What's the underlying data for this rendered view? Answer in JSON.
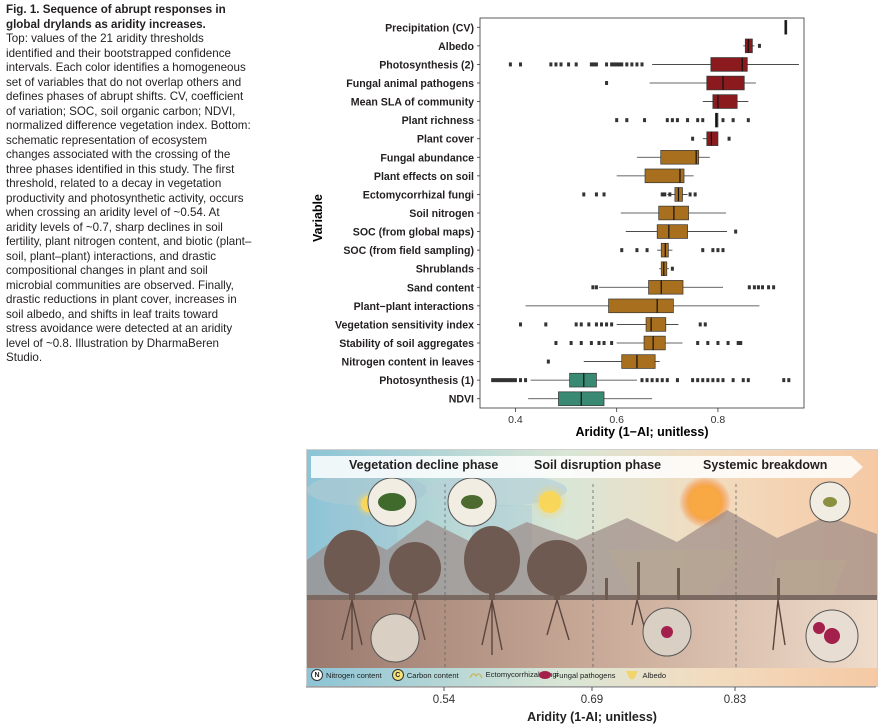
{
  "caption": {
    "title": "Fig. 1. Sequence of abrupt responses in global drylands as aridity increases.",
    "body": "Top: values of the 21 aridity thresholds identified and their bootstrapped confidence intervals. Each color identifies a homogeneous set of variables that do not overlap others and defines phases of abrupt shifts. CV, coefficient of variation; SOC, soil organic carbon; NDVI, normalized difference vegetation index. Bottom: schematic representation of ecosystem changes associated with the crossing of the three phases identified in this study. The first threshold, related to a decay in vegetation productivity and photosynthetic activity, occurs when crossing an aridity level of ~0.54. At aridity levels of ~0.7, sharp declines in soil fertility, plant nitrogen content, and biotic (plant–soil, plant–plant) interactions, and drastic compositional changes in plant and soil microbial communities are observed. Finally, drastic reductions in plant cover, increases in soil albedo, and shifts in leaf traits toward stress avoidance were detected at an aridity level of ~0.8. Illustration by DharmaBeren Studio."
  },
  "colors": {
    "red": "#8b1a1f",
    "brown": "#a8701e",
    "green": "#3a8a73"
  },
  "chart_data": {
    "type": "boxplot",
    "xlabel": "Aridity (1−AI; unitless)",
    "ylabel": "Variable",
    "xlim": [
      0.33,
      0.97
    ],
    "xticks": [
      0.4,
      0.6,
      0.8
    ],
    "xtick_labels": [
      "0.4",
      "0.6",
      "0.8"
    ],
    "series": [
      {
        "label": "Precipitation (CV)",
        "group": "none",
        "q1": 0.932,
        "median": 0.934,
        "q3": 0.936,
        "lo": 0.932,
        "hi": 0.936,
        "outliers": []
      },
      {
        "label": "Albedo",
        "group": "red",
        "q1": 0.854,
        "median": 0.86,
        "q3": 0.868,
        "lo": 0.85,
        "hi": 0.872,
        "outliers": [
          0.882
        ]
      },
      {
        "label": "Photosynthesis (2)",
        "group": "red",
        "q1": 0.786,
        "median": 0.848,
        "q3": 0.858,
        "lo": 0.67,
        "hi": 0.96,
        "outliers": [
          0.39,
          0.41,
          0.47,
          0.48,
          0.49,
          0.505,
          0.52,
          0.55,
          0.555,
          0.56,
          0.58,
          0.59,
          0.595,
          0.6,
          0.605,
          0.61,
          0.62,
          0.63,
          0.64,
          0.65
        ]
      },
      {
        "label": "Fungal animal pathogens",
        "group": "red",
        "q1": 0.778,
        "median": 0.81,
        "q3": 0.852,
        "lo": 0.665,
        "hi": 0.875,
        "outliers": [
          0.58
        ]
      },
      {
        "label": "Mean SLA of community",
        "group": "red",
        "q1": 0.79,
        "median": 0.8,
        "q3": 0.838,
        "lo": 0.77,
        "hi": 0.86,
        "outliers": []
      },
      {
        "label": "Plant richness",
        "group": "red",
        "q1": 0.795,
        "median": 0.797,
        "q3": 0.8,
        "lo": 0.795,
        "hi": 0.8,
        "outliers": [
          0.6,
          0.62,
          0.655,
          0.7,
          0.71,
          0.72,
          0.74,
          0.76,
          0.77,
          0.81,
          0.83,
          0.86
        ]
      },
      {
        "label": "Plant cover",
        "group": "red",
        "q1": 0.778,
        "median": 0.787,
        "q3": 0.8,
        "lo": 0.77,
        "hi": 0.8,
        "outliers": [
          0.75,
          0.822
        ]
      },
      {
        "label": "Fungal abundance",
        "group": "brown",
        "q1": 0.687,
        "median": 0.757,
        "q3": 0.762,
        "lo": 0.64,
        "hi": 0.784,
        "outliers": []
      },
      {
        "label": "Plant effects on soil",
        "group": "brown",
        "q1": 0.656,
        "median": 0.725,
        "q3": 0.733,
        "lo": 0.6,
        "hi": 0.752,
        "outliers": []
      },
      {
        "label": "Ectomycorrhizal fungi",
        "group": "brown",
        "q1": 0.715,
        "median": 0.722,
        "q3": 0.73,
        "lo": 0.7,
        "hi": 0.74,
        "outliers": [
          0.535,
          0.56,
          0.575,
          0.69,
          0.695,
          0.705,
          0.745,
          0.755
        ]
      },
      {
        "label": "Soil nitrogen",
        "group": "brown",
        "q1": 0.683,
        "median": 0.713,
        "q3": 0.742,
        "lo": 0.608,
        "hi": 0.816,
        "outliers": []
      },
      {
        "label": "SOC (from global maps)",
        "group": "brown",
        "q1": 0.68,
        "median": 0.703,
        "q3": 0.74,
        "lo": 0.618,
        "hi": 0.818,
        "outliers": [
          0.835
        ]
      },
      {
        "label": "SOC (from field sampling)",
        "group": "brown",
        "q1": 0.688,
        "median": 0.696,
        "q3": 0.702,
        "lo": 0.68,
        "hi": 0.71,
        "outliers": [
          0.61,
          0.64,
          0.66,
          0.77,
          0.79,
          0.8,
          0.81
        ]
      },
      {
        "label": "Shrublands",
        "group": "brown",
        "q1": 0.688,
        "median": 0.693,
        "q3": 0.699,
        "lo": 0.684,
        "hi": 0.703,
        "outliers": [
          0.71
        ]
      },
      {
        "label": "Sand content",
        "group": "brown",
        "q1": 0.663,
        "median": 0.688,
        "q3": 0.731,
        "lo": 0.565,
        "hi": 0.81,
        "outliers": [
          0.553,
          0.56,
          0.862,
          0.872,
          0.88,
          0.888,
          0.9,
          0.91
        ]
      },
      {
        "label": "Plant−plant interactions",
        "group": "brown",
        "q1": 0.584,
        "median": 0.68,
        "q3": 0.712,
        "lo": 0.42,
        "hi": 0.882,
        "outliers": []
      },
      {
        "label": "Vegetation sensitivity index",
        "group": "brown",
        "q1": 0.658,
        "median": 0.668,
        "q3": 0.697,
        "lo": 0.6,
        "hi": 0.722,
        "outliers": [
          0.41,
          0.46,
          0.52,
          0.53,
          0.545,
          0.56,
          0.57,
          0.58,
          0.59,
          0.765,
          0.775
        ]
      },
      {
        "label": "Stability of soil aggregates",
        "group": "brown",
        "q1": 0.654,
        "median": 0.672,
        "q3": 0.696,
        "lo": 0.6,
        "hi": 0.73,
        "outliers": [
          0.48,
          0.51,
          0.53,
          0.55,
          0.565,
          0.575,
          0.59,
          0.76,
          0.78,
          0.8,
          0.82,
          0.84,
          0.845
        ]
      },
      {
        "label": "Nitrogen content in leaves",
        "group": "brown",
        "q1": 0.61,
        "median": 0.64,
        "q3": 0.676,
        "lo": 0.535,
        "hi": 0.685,
        "outliers": [
          0.465
        ]
      },
      {
        "label": "Photosynthesis (1)",
        "group": "green",
        "q1": 0.507,
        "median": 0.535,
        "q3": 0.56,
        "lo": 0.43,
        "hi": 0.64,
        "outliers": [
          0.355,
          0.36,
          0.365,
          0.37,
          0.375,
          0.38,
          0.385,
          0.39,
          0.395,
          0.4,
          0.41,
          0.42,
          0.65,
          0.66,
          0.67,
          0.68,
          0.69,
          0.7,
          0.72,
          0.75,
          0.76,
          0.77,
          0.78,
          0.79,
          0.8,
          0.81,
          0.83,
          0.85,
          0.86,
          0.93,
          0.94
        ]
      },
      {
        "label": "NDVI",
        "group": "green",
        "q1": 0.485,
        "median": 0.53,
        "q3": 0.575,
        "lo": 0.425,
        "hi": 0.67,
        "outliers": []
      }
    ]
  },
  "illustration": {
    "phases": [
      {
        "label": "Vegetation decline phase",
        "color": "#3e7f5f"
      },
      {
        "label": "Soil disruption phase",
        "color": "#b77a2a"
      },
      {
        "label": "Systemic breakdown",
        "color": "#8b1a2a"
      }
    ],
    "legend": [
      {
        "icon": "N",
        "label": "Nitrogen content"
      },
      {
        "icon": "C",
        "label": "Carbon content"
      },
      {
        "icon": "fungi",
        "label": "Ectomycorrhizal fungi"
      },
      {
        "icon": "pathogen",
        "label": "Fungal pathogens"
      },
      {
        "icon": "albedo",
        "label": "Albedo"
      }
    ],
    "axis": {
      "ticks": [
        "0.54",
        "0.69",
        "0.83"
      ],
      "label": "Aridity (1-AI; unitless)"
    }
  }
}
